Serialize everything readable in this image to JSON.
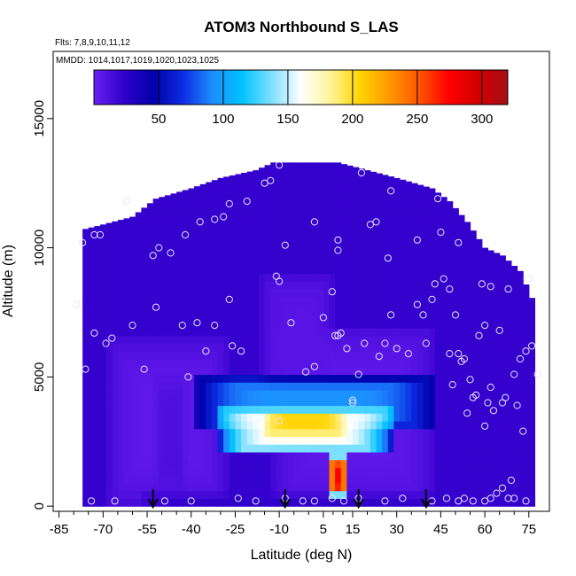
{
  "chart_data": {
    "type": "heatmap",
    "title": "ATOM3 Northbound S_LAS",
    "subtitle_flights": "Flts: 7,8,9,10,11,12",
    "subtitle_dates": "MMDD: 1014,1017,1019,1020,1023,1025",
    "xlabel": "Latitude (deg N)",
    "ylabel": "Altitude (m)",
    "xlim": [
      -87,
      82
    ],
    "ylim": [
      -200,
      17600
    ],
    "xticks": [
      -85,
      -70,
      -55,
      -40,
      -25,
      -10,
      5,
      15,
      30,
      45,
      60,
      75
    ],
    "xtick_labels": [
      "-85",
      "-70",
      "-55",
      "-40",
      "-25",
      "-10",
      "5",
      "15",
      "30",
      "45",
      "60",
      "75"
    ],
    "yticks": [
      0,
      5000,
      10000,
      15000
    ],
    "ytick_labels": [
      "0",
      "5000",
      "10000",
      "15000"
    ],
    "colorbar": {
      "range": [
        0,
        320
      ],
      "ticks": [
        50,
        100,
        150,
        200,
        250,
        300
      ],
      "tick_labels": [
        "50",
        "100",
        "150",
        "200",
        "250",
        "300"
      ],
      "location": "top inside",
      "colors": [
        "#6b1ff2",
        "#3300cc",
        "#0000aa",
        "#0d2be0",
        "#1e8cff",
        "#00c2ff",
        "#7de0ff",
        "#ffffff",
        "#fff59a",
        "#ffd400",
        "#ff9900",
        "#ff5500",
        "#ff0000",
        "#d10000",
        "#a50f15"
      ]
    },
    "field": {
      "background_value": 22,
      "envelope_top": [
        [
          -77,
          10700
        ],
        [
          -70,
          10900
        ],
        [
          -60,
          11200
        ],
        [
          -52,
          11900
        ],
        [
          -40,
          12300
        ],
        [
          -30,
          12700
        ],
        [
          -18,
          13000
        ],
        [
          -12,
          13300
        ],
        [
          10,
          13300
        ],
        [
          20,
          13000
        ],
        [
          30,
          12700
        ],
        [
          42,
          12300
        ],
        [
          48,
          11800
        ],
        [
          54,
          11000
        ],
        [
          60,
          10000
        ],
        [
          66,
          9700
        ],
        [
          72,
          9100
        ],
        [
          77,
          7800
        ]
      ],
      "features": [
        {
          "name": "southern lower troposphere",
          "lat": [
            -68,
            -28
          ],
          "alt": [
            0,
            6500
          ],
          "value": 5
        },
        {
          "name": "tropical lower troposphere",
          "lat": [
            -12,
            42
          ],
          "alt": [
            0,
            7000
          ],
          "value": 5
        },
        {
          "name": "central uplift",
          "lat": [
            -16,
            8
          ],
          "alt": [
            4500,
            9000
          ],
          "value": 8
        },
        {
          "name": "southern flank",
          "lat": [
            -52,
            -42
          ],
          "alt": [
            400,
            5000
          ],
          "value": 12
        },
        {
          "name": "mid-level layer",
          "lat": [
            -38,
            42
          ],
          "alt": [
            3000,
            5000
          ],
          "value": 95
        },
        {
          "name": "mid-level plume",
          "lat": [
            -30,
            28
          ],
          "alt": [
            2000,
            3800
          ],
          "value": 165
        },
        {
          "name": "plume maximum",
          "lat": [
            -15,
            12
          ],
          "alt": [
            2800,
            3700
          ],
          "value": 205
        },
        {
          "name": "boundary layer source",
          "lat": [
            7,
            13
          ],
          "alt": [
            300,
            2000
          ],
          "value": 275
        },
        {
          "name": "surface layer",
          "lat": [
            -57,
            48
          ],
          "alt": [
            0,
            450
          ],
          "value": 25
        }
      ]
    },
    "sample_points": [
      [
        -77,
        10200
      ],
      [
        -73,
        10500
      ],
      [
        -71,
        10500
      ],
      [
        -62,
        11800
      ],
      [
        -53,
        9700
      ],
      [
        -51,
        10000
      ],
      [
        -47,
        9800
      ],
      [
        -42,
        10500
      ],
      [
        -37,
        11000
      ],
      [
        -32,
        11100
      ],
      [
        -29,
        11200
      ],
      [
        -27,
        11700
      ],
      [
        -21,
        11800
      ],
      [
        -15,
        12500
      ],
      [
        -13,
        12600
      ],
      [
        -10,
        13200
      ],
      [
        -8,
        10100
      ],
      [
        2,
        11000
      ],
      [
        10,
        9900
      ],
      [
        10,
        10300
      ],
      [
        18,
        12900
      ],
      [
        21,
        10900
      ],
      [
        23,
        11000
      ],
      [
        27,
        9600
      ],
      [
        28,
        12200
      ],
      [
        37,
        10300
      ],
      [
        44,
        11900
      ],
      [
        45,
        10600
      ],
      [
        51,
        10200
      ],
      [
        -79,
        7800
      ],
      [
        -73,
        6700
      ],
      [
        -69,
        6300
      ],
      [
        -67,
        6500
      ],
      [
        -60,
        7000
      ],
      [
        -76,
        5300
      ],
      [
        -56,
        5300
      ],
      [
        -52,
        7700
      ],
      [
        -43,
        7000
      ],
      [
        -41,
        5000
      ],
      [
        -38,
        7100
      ],
      [
        -35,
        6000
      ],
      [
        -32,
        7000
      ],
      [
        -27,
        8000
      ],
      [
        -26,
        6200
      ],
      [
        -23,
        6000
      ],
      [
        -11,
        8900
      ],
      [
        -10,
        8700
      ],
      [
        -6,
        7100
      ],
      [
        -1,
        5200
      ],
      [
        2,
        5400
      ],
      [
        5,
        7300
      ],
      [
        8,
        8300
      ],
      [
        9,
        6600
      ],
      [
        10,
        6600
      ],
      [
        11,
        6700
      ],
      [
        13,
        6100
      ],
      [
        15,
        4100
      ],
      [
        17,
        5100
      ],
      [
        19,
        6300
      ],
      [
        24,
        5800
      ],
      [
        26,
        6300
      ],
      [
        28,
        7400
      ],
      [
        30,
        6100
      ],
      [
        34,
        5900
      ],
      [
        37,
        7800
      ],
      [
        39,
        7400
      ],
      [
        40,
        6300
      ],
      [
        42,
        8000
      ],
      [
        43,
        8600
      ],
      [
        46,
        8800
      ],
      [
        48,
        8400
      ],
      [
        48,
        5900
      ],
      [
        49,
        4700
      ],
      [
        50,
        7400
      ],
      [
        51,
        5900
      ],
      [
        52,
        5600
      ],
      [
        53,
        5700
      ],
      [
        54,
        3600
      ],
      [
        55,
        4900
      ],
      [
        56,
        4200
      ],
      [
        57,
        4300
      ],
      [
        58,
        6600
      ],
      [
        59,
        8600
      ],
      [
        60,
        7000
      ],
      [
        60,
        3100
      ],
      [
        61,
        4000
      ],
      [
        62,
        4600
      ],
      [
        62,
        8500
      ],
      [
        63,
        3700
      ],
      [
        65,
        6800
      ],
      [
        66,
        4000
      ],
      [
        67,
        4200
      ],
      [
        68,
        8400
      ],
      [
        69,
        1000
      ],
      [
        70,
        5100
      ],
      [
        71,
        3900
      ],
      [
        72,
        5700
      ],
      [
        73,
        2900
      ],
      [
        74,
        6000
      ],
      [
        75,
        8800
      ],
      [
        76,
        6200
      ],
      [
        78,
        5100
      ],
      [
        -10,
        3300
      ],
      [
        15,
        4000
      ],
      [
        -74,
        200
      ],
      [
        -66,
        200
      ],
      [
        -49,
        200
      ],
      [
        -40,
        200
      ],
      [
        -24,
        300
      ],
      [
        -18,
        200
      ],
      [
        -8,
        300
      ],
      [
        -2,
        200
      ],
      [
        2,
        200
      ],
      [
        8,
        300
      ],
      [
        12,
        200
      ],
      [
        17,
        300
      ],
      [
        26,
        200
      ],
      [
        32,
        300
      ],
      [
        42,
        200
      ],
      [
        47,
        300
      ],
      [
        51,
        200
      ],
      [
        53,
        300
      ],
      [
        56,
        200
      ],
      [
        60,
        200
      ],
      [
        62,
        300
      ],
      [
        64,
        500
      ],
      [
        66,
        700
      ],
      [
        68,
        300
      ],
      [
        70,
        300
      ],
      [
        74,
        200
      ]
    ],
    "arrows_lat": [
      -53,
      -8,
      17,
      40
    ]
  }
}
